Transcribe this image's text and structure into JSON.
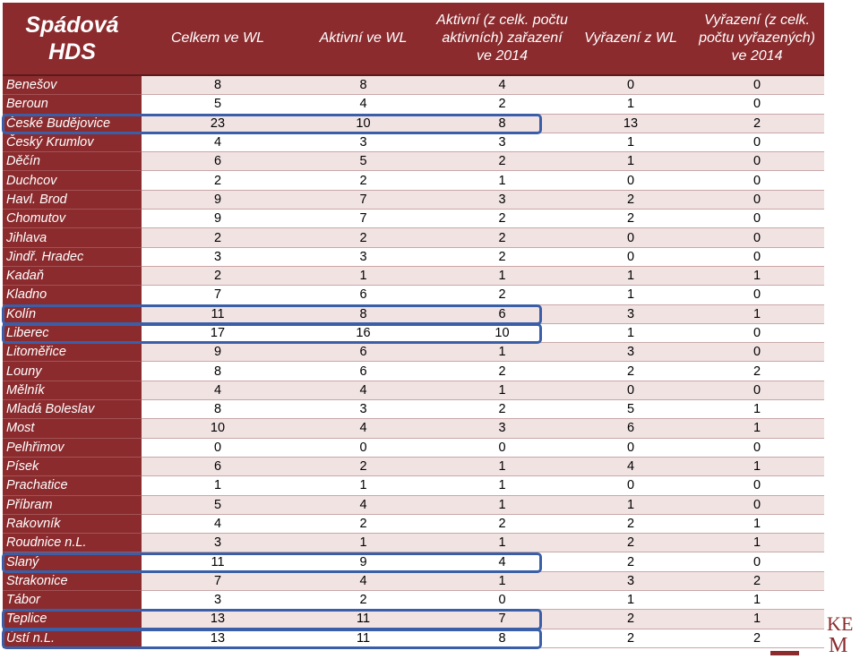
{
  "header": {
    "title_line1": "Spádová",
    "title_line2": "HDS",
    "col1": "Celkem ve WL",
    "col2": "Aktivní ve WL",
    "col3": "Aktivní (z celk. počtu aktivních) zařazení ve 2014",
    "col4": "Vyřazení z WL",
    "col5": "Vyřazení (z celk. počtu vyřazených) ve 2014"
  },
  "rows": [
    {
      "name": "Benešov",
      "v": [
        "8",
        "8",
        "4",
        "0",
        "0"
      ]
    },
    {
      "name": "Beroun",
      "v": [
        "5",
        "4",
        "2",
        "1",
        "0"
      ]
    },
    {
      "name": "České Budějovice",
      "v": [
        "23",
        "10",
        "8",
        "13",
        "2"
      ]
    },
    {
      "name": "Český Krumlov",
      "v": [
        "4",
        "3",
        "3",
        "1",
        "0"
      ]
    },
    {
      "name": "Děčín",
      "v": [
        "6",
        "5",
        "2",
        "1",
        "0"
      ]
    },
    {
      "name": "Duchcov",
      "v": [
        "2",
        "2",
        "1",
        "0",
        "0"
      ]
    },
    {
      "name": "Havl. Brod",
      "v": [
        "9",
        "7",
        "3",
        "2",
        "0"
      ]
    },
    {
      "name": "Chomutov",
      "v": [
        "9",
        "7",
        "2",
        "2",
        "0"
      ]
    },
    {
      "name": "Jihlava",
      "v": [
        "2",
        "2",
        "2",
        "0",
        "0"
      ]
    },
    {
      "name": "Jindř. Hradec",
      "v": [
        "3",
        "3",
        "2",
        "0",
        "0"
      ]
    },
    {
      "name": "Kadaň",
      "v": [
        "2",
        "1",
        "1",
        "1",
        "1"
      ]
    },
    {
      "name": "Kladno",
      "v": [
        "7",
        "6",
        "2",
        "1",
        "0"
      ]
    },
    {
      "name": "Kolín",
      "v": [
        "11",
        "8",
        "6",
        "3",
        "1"
      ]
    },
    {
      "name": "Liberec",
      "v": [
        "17",
        "16",
        "10",
        "1",
        "0"
      ]
    },
    {
      "name": "Litoměřice",
      "v": [
        "9",
        "6",
        "1",
        "3",
        "0"
      ]
    },
    {
      "name": "Louny",
      "v": [
        "8",
        "6",
        "2",
        "2",
        "2"
      ]
    },
    {
      "name": "Mělník",
      "v": [
        "4",
        "4",
        "1",
        "0",
        "0"
      ]
    },
    {
      "name": "Mladá Boleslav",
      "v": [
        "8",
        "3",
        "2",
        "5",
        "1"
      ]
    },
    {
      "name": "Most",
      "v": [
        "10",
        "4",
        "3",
        "6",
        "1"
      ]
    },
    {
      "name": "Pelhřimov",
      "v": [
        "0",
        "0",
        "0",
        "0",
        "0"
      ]
    },
    {
      "name": "Písek",
      "v": [
        "6",
        "2",
        "1",
        "4",
        "1"
      ]
    },
    {
      "name": "Prachatice",
      "v": [
        "1",
        "1",
        "1",
        "0",
        "0"
      ]
    },
    {
      "name": "Příbram",
      "v": [
        "5",
        "4",
        "1",
        "1",
        "0"
      ]
    },
    {
      "name": "Rakovník",
      "v": [
        "4",
        "2",
        "2",
        "2",
        "1"
      ]
    },
    {
      "name": "Roudnice n.L.",
      "v": [
        "3",
        "1",
        "1",
        "2",
        "1"
      ]
    },
    {
      "name": "Slaný",
      "v": [
        "11",
        "9",
        "4",
        "2",
        "0"
      ]
    },
    {
      "name": "Strakonice",
      "v": [
        "7",
        "4",
        "1",
        "3",
        "2"
      ]
    },
    {
      "name": "Tábor",
      "v": [
        "3",
        "2",
        "0",
        "1",
        "1"
      ]
    },
    {
      "name": "Teplice",
      "v": [
        "13",
        "11",
        "7",
        "2",
        "1"
      ]
    },
    {
      "name": "Ústí n.L.",
      "v": [
        "13",
        "11",
        "8",
        "2",
        "2"
      ]
    }
  ],
  "highlighted_rows": [
    "České Budějovice",
    "Kolín",
    "Liberec",
    "Slaný",
    "Teplice",
    "Ústí n.L."
  ],
  "logo": {
    "icon": "kem-logo-icon",
    "text": "KEM"
  },
  "colors": {
    "header_bg": "#8b2b2e",
    "row_alt": "#f2e3e3",
    "highlight": "#3a5fa8"
  }
}
